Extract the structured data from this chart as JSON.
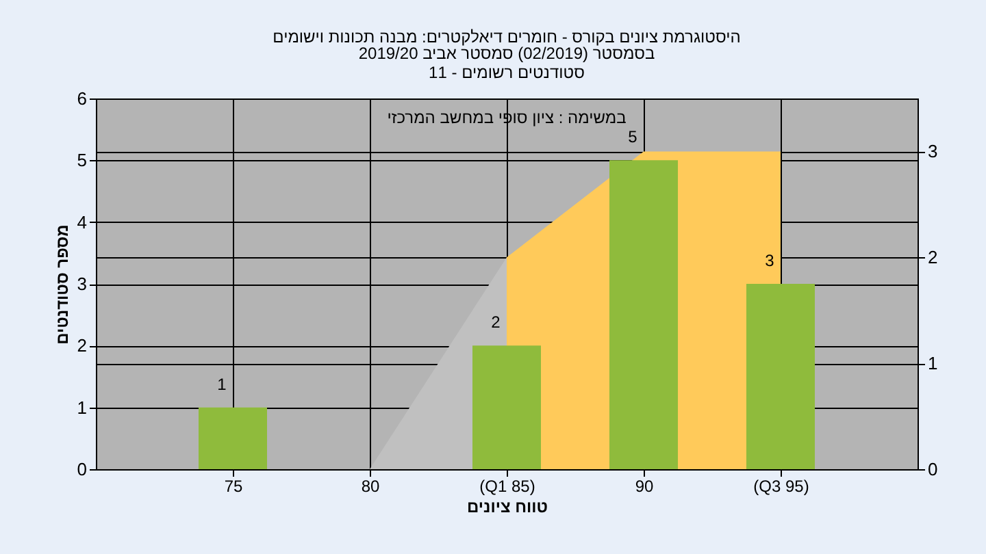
{
  "chart_data": {
    "type": "bar",
    "title": "היסטוגרמת ציונים בקורס - חומרים דיאלקטרים: מבנה תכונות וישומים",
    "subtitle": "בסמסטר  (02/2019)  סמסטר אביב 2019/20\nסטודנטים רשומים - 11",
    "xlabel": "טווח ציונים",
    "ylabel": "מספר סטודנטים",
    "annotations": [
      "במשימה : ציון סופי במחשב המרכזי"
    ],
    "categories": [
      "75",
      "80",
      "(Q1 85)",
      "90",
      "(Q3 95)"
    ],
    "series": [
      {
        "type": "area",
        "axis": "y2",
        "color": "#ffca5a",
        "values": [
          null,
          null,
          2,
          3,
          3
        ]
      },
      {
        "type": "area",
        "axis": "y2",
        "color": "#c0c0c0",
        "values": [
          null,
          0,
          2,
          null,
          null
        ]
      },
      {
        "type": "bar",
        "color": "#8fbb3c",
        "values": [
          1,
          0,
          2,
          5,
          3
        ],
        "value_labels": [
          "1",
          null,
          "2",
          "5",
          "3"
        ]
      }
    ],
    "ylim": [
      0,
      6
    ],
    "yticks": [
      0,
      1,
      2,
      3,
      4,
      5,
      6
    ],
    "y2lim": [
      0,
      3.5
    ],
    "y2ticks": [
      0,
      1,
      2,
      3
    ],
    "grid": true
  }
}
